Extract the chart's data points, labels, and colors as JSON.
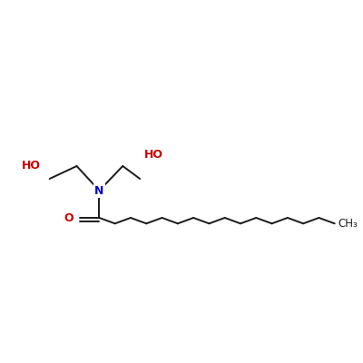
{
  "background_color": "#ffffff",
  "bond_color": "#1a1a1a",
  "N_color": "#0000cc",
  "O_color": "#cc0000",
  "text_color": "#1a1a1a",
  "figsize": [
    4.0,
    4.0
  ],
  "dpi": 100,
  "N_label": "N",
  "O_label": "O",
  "HO_label_left": "HO",
  "HO_label_right": "HO",
  "CH3_label": "CH₃",
  "bond_lw": 1.4,
  "font_size": 9.0
}
